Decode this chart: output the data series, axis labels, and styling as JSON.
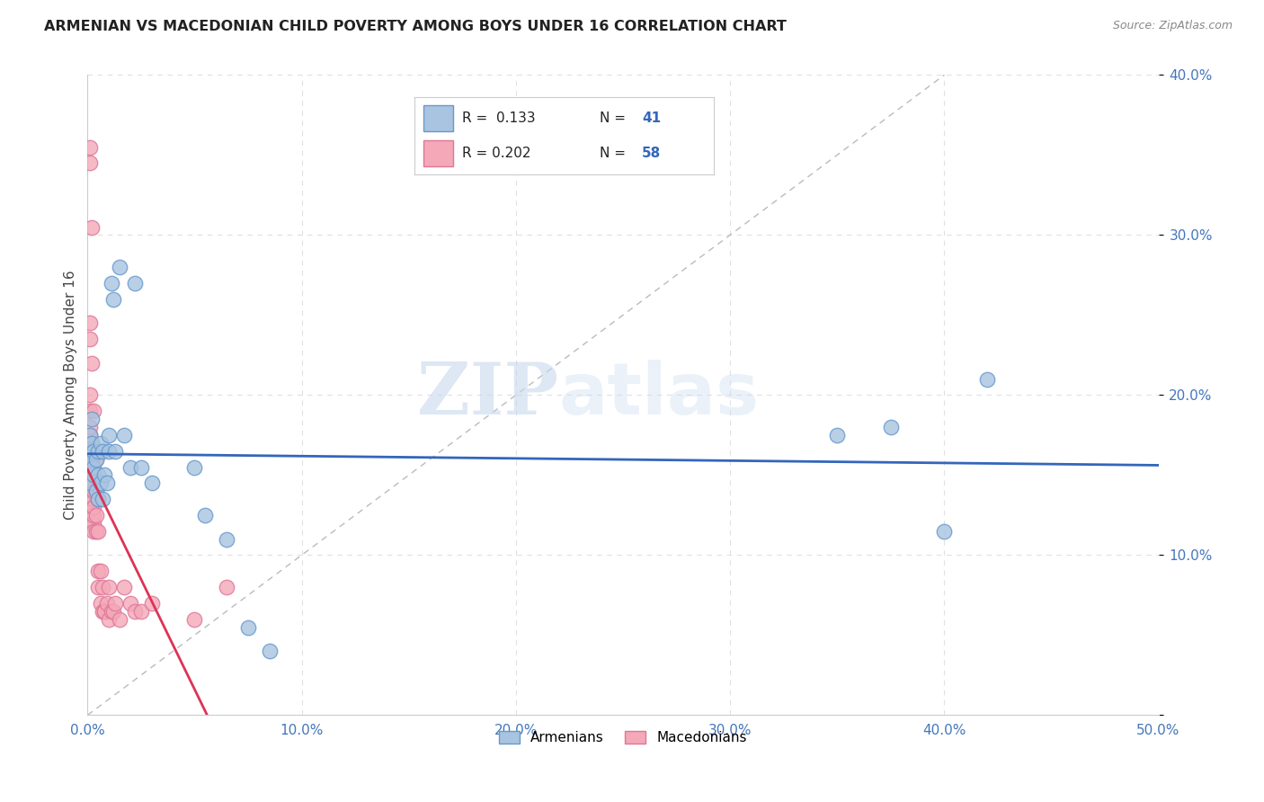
{
  "title": "ARMENIAN VS MACEDONIAN CHILD POVERTY AMONG BOYS UNDER 16 CORRELATION CHART",
  "source": "Source: ZipAtlas.com",
  "ylabel": "Child Poverty Among Boys Under 16",
  "xlabel": "",
  "xlim": [
    0,
    0.5
  ],
  "ylim": [
    0,
    0.4
  ],
  "xticks": [
    0.0,
    0.1,
    0.2,
    0.3,
    0.4,
    0.5
  ],
  "yticks": [
    0.0,
    0.1,
    0.2,
    0.3,
    0.4
  ],
  "xticklabels": [
    "0.0%",
    "10.0%",
    "20.0%",
    "30.0%",
    "40.0%",
    "50.0%"
  ],
  "yticklabels": [
    "",
    "10.0%",
    "20.0%",
    "30.0%",
    "40.0%"
  ],
  "armenian_color": "#a8c4e0",
  "macedonian_color": "#f4a8b8",
  "armenian_edge": "#6699cc",
  "macedonian_edge": "#dd7799",
  "line_armenian_color": "#3366bb",
  "line_macedonian_color": "#dd3355",
  "armenian_x": [
    0.001,
    0.001,
    0.001,
    0.001,
    0.002,
    0.002,
    0.002,
    0.003,
    0.003,
    0.003,
    0.004,
    0.004,
    0.005,
    0.005,
    0.005,
    0.006,
    0.006,
    0.007,
    0.007,
    0.008,
    0.009,
    0.01,
    0.01,
    0.011,
    0.012,
    0.013,
    0.015,
    0.017,
    0.02,
    0.022,
    0.025,
    0.03,
    0.05,
    0.055,
    0.065,
    0.075,
    0.085,
    0.35,
    0.375,
    0.4,
    0.42
  ],
  "armenian_y": [
    0.155,
    0.165,
    0.145,
    0.175,
    0.16,
    0.17,
    0.185,
    0.15,
    0.165,
    0.155,
    0.14,
    0.16,
    0.135,
    0.15,
    0.165,
    0.145,
    0.17,
    0.135,
    0.165,
    0.15,
    0.145,
    0.165,
    0.175,
    0.27,
    0.26,
    0.165,
    0.28,
    0.175,
    0.155,
    0.27,
    0.155,
    0.145,
    0.155,
    0.125,
    0.11,
    0.055,
    0.04,
    0.175,
    0.18,
    0.115,
    0.21
  ],
  "macedonian_x": [
    0.001,
    0.001,
    0.001,
    0.001,
    0.001,
    0.001,
    0.001,
    0.001,
    0.001,
    0.001,
    0.001,
    0.001,
    0.002,
    0.002,
    0.002,
    0.002,
    0.002,
    0.002,
    0.002,
    0.002,
    0.002,
    0.002,
    0.002,
    0.003,
    0.003,
    0.003,
    0.003,
    0.003,
    0.003,
    0.003,
    0.004,
    0.004,
    0.004,
    0.004,
    0.005,
    0.005,
    0.005,
    0.005,
    0.006,
    0.006,
    0.007,
    0.007,
    0.008,
    0.008,
    0.009,
    0.01,
    0.01,
    0.011,
    0.012,
    0.013,
    0.015,
    0.017,
    0.02,
    0.022,
    0.025,
    0.03,
    0.05,
    0.065
  ],
  "macedonian_y": [
    0.145,
    0.155,
    0.16,
    0.17,
    0.175,
    0.18,
    0.19,
    0.2,
    0.235,
    0.245,
    0.345,
    0.355,
    0.12,
    0.13,
    0.14,
    0.145,
    0.15,
    0.155,
    0.16,
    0.17,
    0.22,
    0.305,
    0.135,
    0.12,
    0.125,
    0.135,
    0.14,
    0.19,
    0.115,
    0.13,
    0.115,
    0.125,
    0.14,
    0.16,
    0.115,
    0.135,
    0.08,
    0.09,
    0.07,
    0.09,
    0.065,
    0.08,
    0.065,
    0.065,
    0.07,
    0.06,
    0.08,
    0.065,
    0.065,
    0.07,
    0.06,
    0.08,
    0.07,
    0.065,
    0.065,
    0.07,
    0.06,
    0.08
  ],
  "watermark_zip": "ZIP",
  "watermark_atlas": "atlas",
  "background_color": "#ffffff",
  "grid_color": "#e0e0e0"
}
